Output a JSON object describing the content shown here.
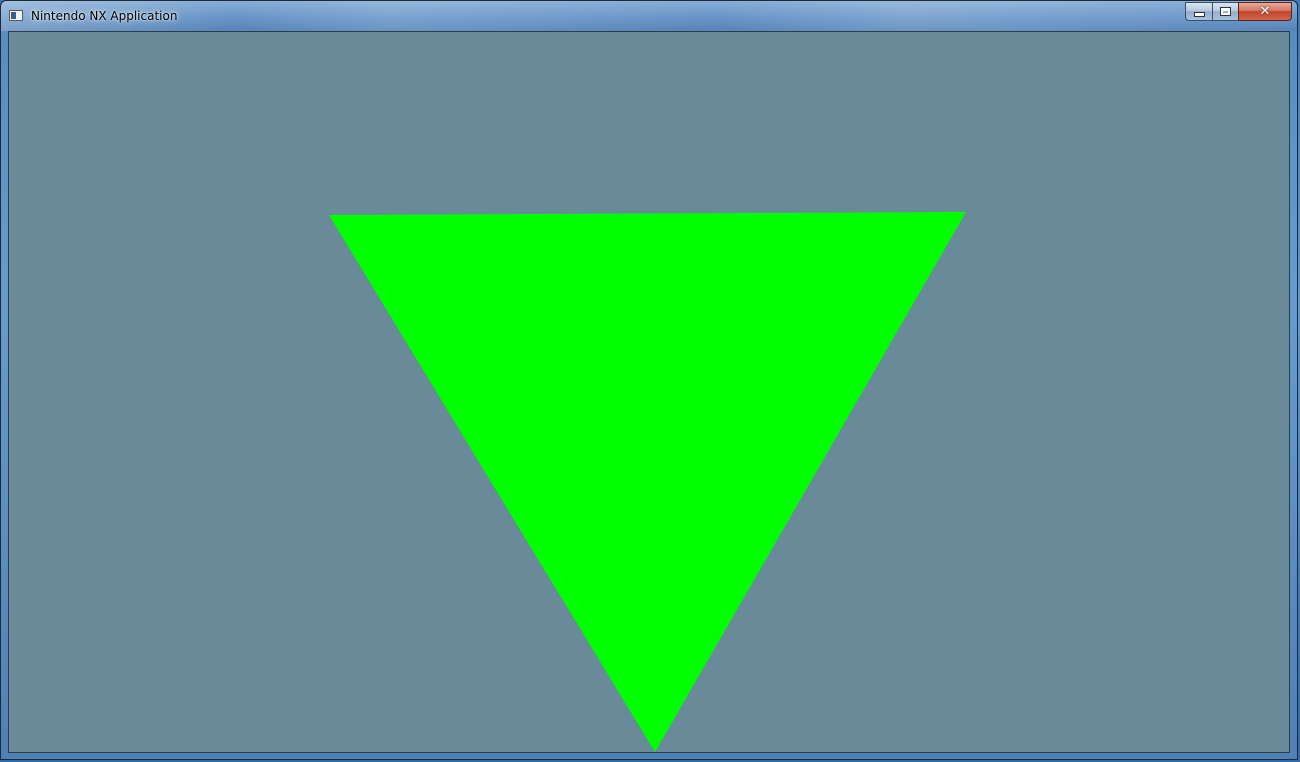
{
  "window": {
    "title": "Nintendo NX Application",
    "icon": "app-window-icon",
    "controls": {
      "minimize_icon": "minimize-icon",
      "maximize_icon": "maximize-icon",
      "close_icon": "close-icon"
    }
  },
  "canvas": {
    "clear_color": "#688a99",
    "triangle_color": "#00ff00"
  }
}
